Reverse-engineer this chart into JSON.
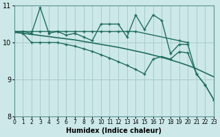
{
  "title": "",
  "xlabel": "Humidex (Indice chaleur)",
  "ylabel": "",
  "bg_color": "#cce8e8",
  "line_color": "#1e6b5e",
  "grid_color": "#a8cccc",
  "xlim": [
    0,
    23
  ],
  "ylim": [
    8,
    11
  ],
  "yticks": [
    8,
    9,
    10,
    11
  ],
  "xticks": [
    0,
    1,
    2,
    3,
    4,
    5,
    6,
    7,
    8,
    9,
    10,
    11,
    12,
    13,
    14,
    15,
    16,
    17,
    18,
    19,
    20,
    21,
    22,
    23
  ],
  "series": [
    {
      "x": [
        0,
        1,
        2,
        3,
        4,
        5,
        6,
        7,
        8,
        9,
        10,
        11,
        12,
        13,
        14,
        15,
        16,
        17,
        18,
        19,
        20,
        21,
        22,
        23
      ],
      "y": [
        10.3,
        10.3,
        10.25,
        10.95,
        10.25,
        10.3,
        10.2,
        10.25,
        10.15,
        10.05,
        10.5,
        10.5,
        10.5,
        10.15,
        10.75,
        10.35,
        10.75,
        10.6,
        9.7,
        9.95,
        9.95,
        9.15,
        8.85,
        8.45
      ],
      "marker": "+",
      "lw": 1.0
    },
    {
      "x": [
        0,
        1,
        2,
        3,
        4,
        5,
        6,
        7,
        8,
        9,
        10,
        11,
        12,
        13,
        14,
        19,
        20
      ],
      "y": [
        10.3,
        10.3,
        10.3,
        10.3,
        10.3,
        10.3,
        10.3,
        10.3,
        10.3,
        10.3,
        10.3,
        10.3,
        10.3,
        10.3,
        10.3,
        10.05,
        10.0
      ],
      "marker": "+",
      "lw": 1.0
    },
    {
      "x": [
        0,
        1,
        2,
        3,
        4,
        5,
        6,
        7,
        8,
        9,
        10,
        11,
        12,
        13,
        14,
        15,
        16,
        17,
        18,
        19,
        20,
        21,
        22,
        23
      ],
      "y": [
        10.28,
        10.25,
        10.22,
        10.19,
        10.16,
        10.13,
        10.1,
        10.07,
        10.03,
        9.99,
        9.95,
        9.91,
        9.87,
        9.82,
        9.77,
        9.72,
        9.66,
        9.6,
        9.53,
        9.46,
        9.38,
        9.29,
        9.18,
        9.07
      ],
      "marker": null,
      "lw": 1.2
    },
    {
      "x": [
        0,
        1,
        2,
        3,
        4,
        5,
        6,
        7,
        8,
        9,
        10,
        11,
        12,
        13,
        14,
        15,
        16,
        17,
        18,
        19,
        20,
        21,
        22,
        23
      ],
      "y": [
        10.28,
        10.25,
        10.0,
        10.0,
        10.0,
        10.0,
        9.95,
        9.9,
        9.83,
        9.76,
        9.67,
        9.58,
        9.48,
        9.38,
        9.27,
        9.15,
        9.55,
        9.62,
        9.55,
        9.75,
        9.72,
        9.15,
        8.85,
        8.45
      ],
      "marker": "+",
      "lw": 1.0
    }
  ]
}
